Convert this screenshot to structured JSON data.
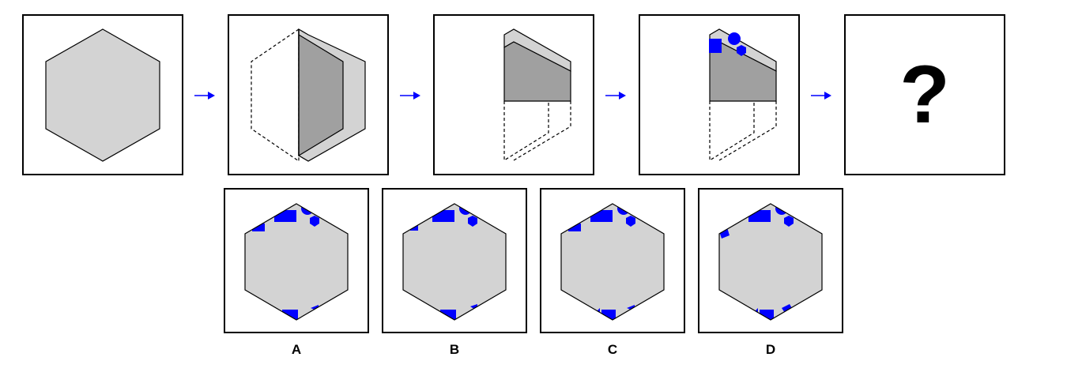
{
  "colors": {
    "face": "#d3d3d3",
    "fold": "#a0a0a0",
    "punch": "#0000ff",
    "arrow": "#0000ff",
    "outline": "#000000"
  },
  "sequence": {
    "step_1_icon": "hexagon-paper",
    "step_2_icon": "hexagon-folded-in-half",
    "step_3_icon": "hexagon-folded-twice",
    "step_4_icon": "folded-paper-with-holes",
    "question": "?"
  },
  "options": [
    {
      "label": "A"
    },
    {
      "label": "B"
    },
    {
      "label": "C"
    },
    {
      "label": "D"
    }
  ]
}
